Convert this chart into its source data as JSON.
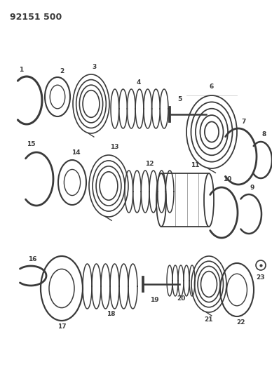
{
  "title": "92151 500",
  "bg": "#ffffff",
  "lc": "#3a3a3a",
  "figsize": [
    3.88,
    5.33
  ],
  "dpi": 100
}
